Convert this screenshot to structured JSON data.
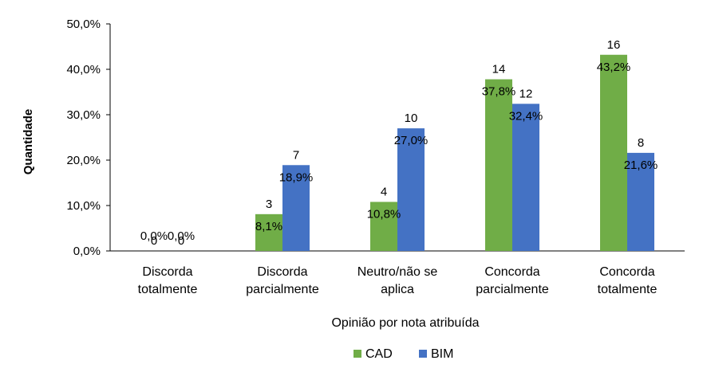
{
  "chart_data": {
    "type": "bar",
    "categories": [
      [
        "Discorda",
        "totalmente"
      ],
      [
        "Discorda",
        "parcialmente"
      ],
      [
        "Neutro/não se",
        "aplica"
      ],
      [
        "Concorda",
        "parcialmente"
      ],
      [
        "Concorda",
        "totalmente"
      ]
    ],
    "series": [
      {
        "name": "CAD",
        "color": "#70AD47",
        "values": [
          0.0,
          8.1,
          10.8,
          37.8,
          43.2
        ],
        "percent_labels": [
          "0,0%",
          "8,1%",
          "10,8%",
          "37,8%",
          "43,2%"
        ],
        "count_labels": [
          "0",
          "3",
          "4",
          "14",
          "16"
        ]
      },
      {
        "name": "BIM",
        "color": "#4472C4",
        "values": [
          0.0,
          18.9,
          27.0,
          32.4,
          21.6
        ],
        "percent_labels": [
          "0,0%",
          "18,9%",
          "27,0%",
          "32,4%",
          "21,6%"
        ],
        "count_labels": [
          "0",
          "7",
          "10",
          "12",
          "8"
        ]
      }
    ],
    "ylim": [
      0,
      50
    ],
    "yticks": [
      0,
      10,
      20,
      30,
      40,
      50
    ],
    "ytick_labels": [
      "0,0%",
      "10,0%",
      "20,0%",
      "30,0%",
      "40,0%",
      "50,0%"
    ],
    "ylabel": "Quantidade",
    "xlabel": "Opinião por nota atribuída",
    "legend_position": "bottom"
  }
}
